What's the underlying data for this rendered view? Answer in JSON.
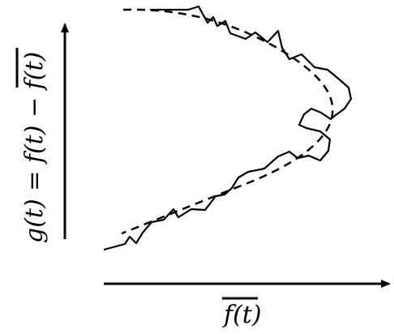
{
  "x_axis": {
    "label": "f(t)",
    "overline": true
  },
  "y_axis": {
    "label_prefix": "g(t) = f(t) − ",
    "label_overlined": "f(t)"
  },
  "curves": [
    {
      "name": "",
      "style": "solid",
      "color": "#000000"
    },
    {
      "name": "",
      "style": "dashed",
      "color": "#000000"
    }
  ]
}
